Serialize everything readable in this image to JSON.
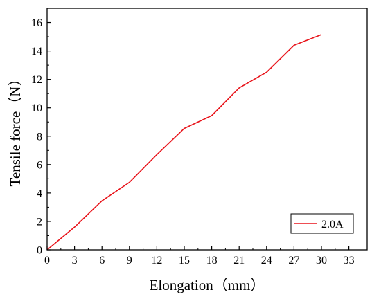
{
  "chart_data": {
    "type": "line",
    "xlabel": "Elongation（mm）",
    "ylabel": "Tensile force（N）",
    "xlim": [
      0,
      35
    ],
    "ylim": [
      0,
      17
    ],
    "xticks": [
      0,
      3,
      6,
      9,
      12,
      15,
      18,
      21,
      24,
      27,
      30,
      33
    ],
    "yticks": [
      0,
      2,
      4,
      6,
      8,
      10,
      12,
      14,
      16
    ],
    "grid": false,
    "legend_position": "bottom-right",
    "series": [
      {
        "name": "2.0A",
        "color": "#e8141b",
        "x": [
          0,
          3,
          6,
          9,
          12,
          15,
          18,
          21,
          24,
          27,
          30
        ],
        "y": [
          0,
          1.6,
          3.45,
          4.75,
          6.7,
          8.55,
          9.45,
          11.4,
          12.5,
          14.4,
          15.15
        ]
      }
    ]
  }
}
